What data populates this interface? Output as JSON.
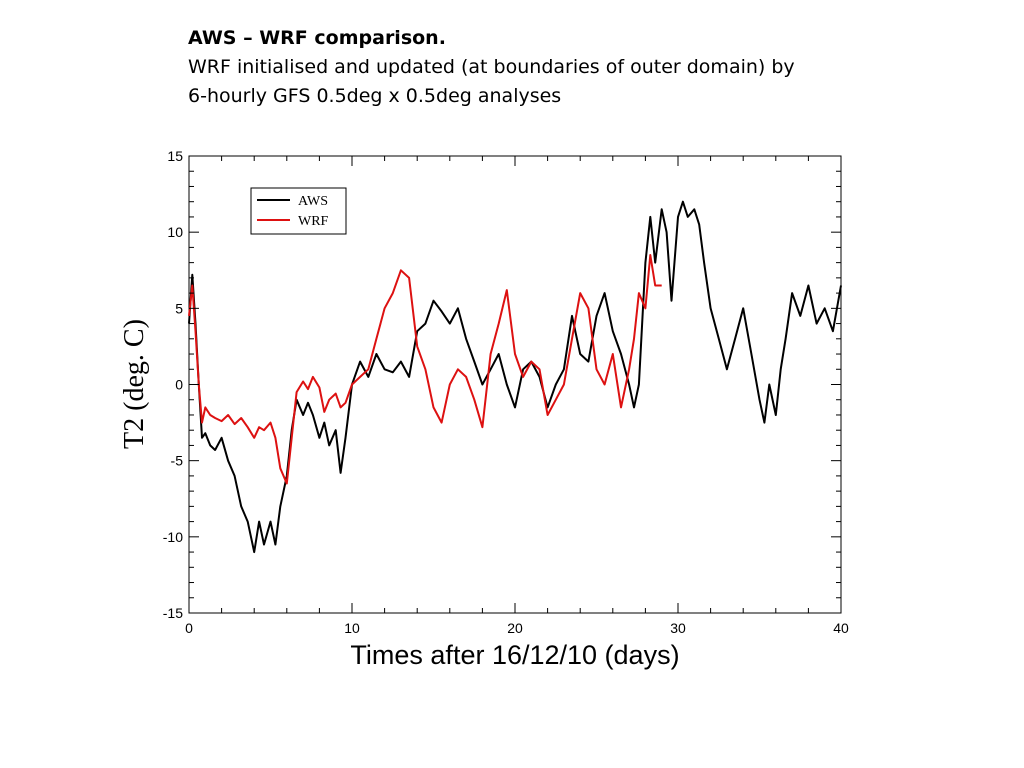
{
  "header": {
    "title": "AWS – WRF comparison.",
    "line1": "WRF initialised and updated (at boundaries of outer domain) by",
    "line2": "6-hourly GFS 0.5deg x 0.5deg analyses"
  },
  "chart_data": {
    "type": "line",
    "title": "",
    "xlabel": "Times after 16/12/10 (days)",
    "ylabel": "T2 (deg. C)",
    "xlim": [
      0,
      40
    ],
    "ylim": [
      -15,
      15
    ],
    "xticks": [
      "0",
      "10",
      "20",
      "30",
      "40"
    ],
    "yticks": [
      "15",
      "10",
      "5",
      "0",
      "-5",
      "-10",
      "-15"
    ],
    "grid": false,
    "legend": "top-left",
    "series": [
      {
        "name": "AWS",
        "color": "#000000",
        "x": [
          0,
          0.2,
          0.4,
          0.6,
          0.8,
          1,
          1.3,
          1.6,
          2,
          2.4,
          2.8,
          3.2,
          3.6,
          4,
          4.3,
          4.6,
          5,
          5.3,
          5.6,
          6,
          6.3,
          6.6,
          7,
          7.3,
          7.6,
          8,
          8.3,
          8.6,
          9,
          9.3,
          9.6,
          10,
          10.5,
          11,
          11.5,
          12,
          12.5,
          13,
          13.5,
          14,
          14.5,
          15,
          15.5,
          16,
          16.5,
          17,
          17.5,
          18,
          18.5,
          19,
          19.5,
          20,
          20.5,
          21,
          21.5,
          22,
          22.5,
          23,
          23.5,
          24,
          24.5,
          25,
          25.5,
          26,
          26.5,
          27,
          27.3,
          27.6,
          28,
          28.3,
          28.6,
          29,
          29.3,
          29.6,
          30,
          30.3,
          30.6,
          31,
          31.3,
          31.6,
          32,
          32.5,
          33,
          33.5,
          34,
          34.5,
          35,
          35.3,
          35.6,
          36,
          36.3,
          36.6,
          37,
          37.5,
          38,
          38.5,
          39,
          39.5,
          40
        ],
        "values": [
          4,
          7.2,
          4,
          0,
          -3.5,
          -3.2,
          -4,
          -4.3,
          -3.5,
          -5,
          -6,
          -8,
          -9,
          -11,
          -9,
          -10.5,
          -9,
          -10.5,
          -8,
          -6,
          -3,
          -1,
          -2,
          -1.2,
          -2,
          -3.5,
          -2.5,
          -4,
          -3,
          -5.8,
          -3.5,
          0,
          1.5,
          0.5,
          2,
          1,
          0.8,
          1.5,
          0.5,
          3.5,
          4,
          5.5,
          4.8,
          4,
          5,
          3,
          1.5,
          0,
          1,
          2,
          0,
          -1.5,
          1,
          1.5,
          0.5,
          -1.5,
          0,
          1,
          4.5,
          2,
          1.5,
          4.5,
          6,
          3.5,
          2,
          0,
          -1.5,
          0,
          8,
          11,
          8,
          11.5,
          10,
          5.5,
          11,
          12,
          11,
          11.5,
          10.5,
          8,
          5,
          3,
          1,
          3,
          5,
          2,
          -1,
          -2.5,
          0,
          -2,
          1,
          3,
          6,
          4.5,
          6.5,
          4,
          5,
          3.5,
          6.5
        ]
      },
      {
        "name": "WRF",
        "color": "#dd1111",
        "x": [
          0,
          0.2,
          0.4,
          0.6,
          0.8,
          1,
          1.3,
          1.6,
          2,
          2.4,
          2.8,
          3.2,
          3.6,
          4,
          4.3,
          4.6,
          5,
          5.3,
          5.6,
          6,
          6.3,
          6.6,
          7,
          7.3,
          7.6,
          8,
          8.3,
          8.6,
          9,
          9.3,
          9.6,
          10,
          10.5,
          11,
          11.5,
          12,
          12.5,
          13,
          13.5,
          14,
          14.5,
          15,
          15.5,
          16,
          16.5,
          17,
          17.5,
          18,
          18.5,
          19,
          19.5,
          20,
          20.5,
          21,
          21.5,
          22,
          22.5,
          23,
          23.5,
          24,
          24.5,
          25,
          25.5,
          26,
          26.5,
          27,
          27.3,
          27.6,
          28,
          28.3,
          28.6,
          29
        ],
        "values": [
          4.5,
          6.5,
          3.5,
          0,
          -2.5,
          -1.5,
          -2,
          -2.2,
          -2.4,
          -2,
          -2.6,
          -2.2,
          -2.8,
          -3.5,
          -2.8,
          -3,
          -2.5,
          -3.5,
          -5.5,
          -6.5,
          -3.5,
          -0.5,
          0.2,
          -0.3,
          0.5,
          -0.2,
          -1.8,
          -1,
          -0.6,
          -1.5,
          -1.2,
          0,
          0.5,
          1,
          3,
          5,
          6,
          7.5,
          7,
          2.5,
          1,
          -1.5,
          -2.5,
          0,
          1,
          0.5,
          -1,
          -2.8,
          2,
          4,
          6.2,
          2,
          0.5,
          1.5,
          1,
          -2,
          -1,
          0,
          3,
          6,
          5,
          1,
          0,
          2,
          -1.5,
          1,
          3,
          6,
          5,
          8.5,
          6.5,
          6.5
        ]
      }
    ]
  }
}
